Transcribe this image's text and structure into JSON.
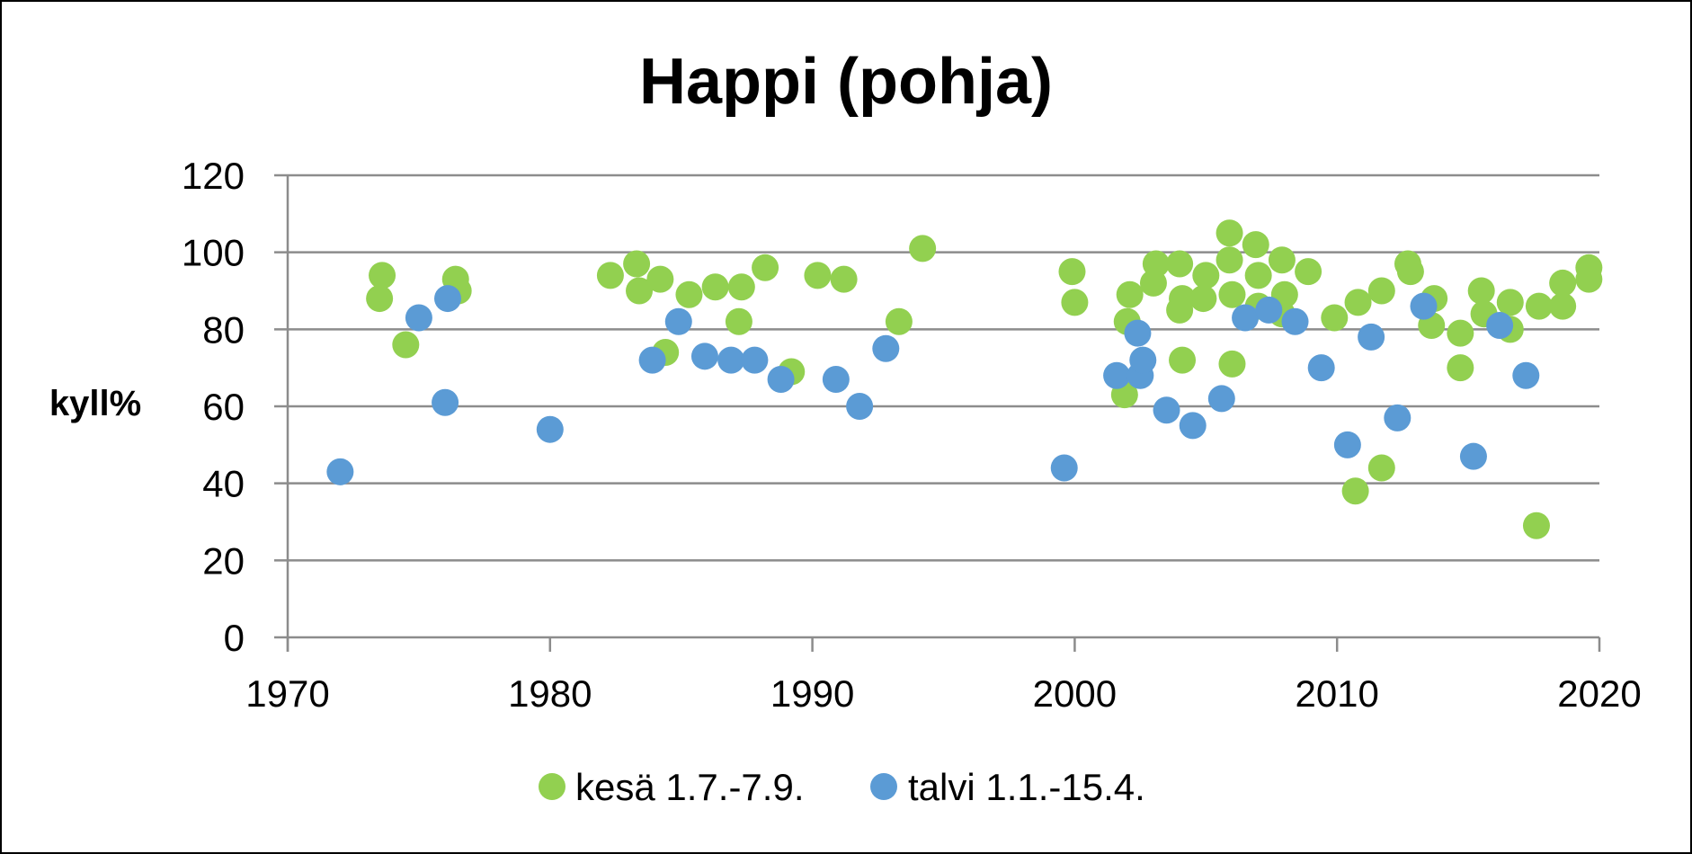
{
  "chart_data": {
    "type": "scatter",
    "title": "Happi (pohja)",
    "ylabel": "kyll%",
    "xlim": [
      1970,
      2020
    ],
    "ylim": [
      0,
      120
    ],
    "x_ticks": [
      1970,
      1980,
      1990,
      2000,
      2010,
      2020
    ],
    "y_ticks": [
      0,
      20,
      40,
      60,
      80,
      100,
      120
    ],
    "grid": "horizontal",
    "legend_position": "bottom",
    "series": [
      {
        "name": "kesä 1.7.-7.9.",
        "color": "#92D050",
        "points": [
          [
            1973.5,
            88
          ],
          [
            1973.6,
            94
          ],
          [
            1974.5,
            76
          ],
          [
            1976.5,
            90
          ],
          [
            1976.4,
            93
          ],
          [
            1982.3,
            94
          ],
          [
            1983.3,
            97
          ],
          [
            1983.4,
            90
          ],
          [
            1984.2,
            93
          ],
          [
            1984.4,
            74
          ],
          [
            1985.3,
            89
          ],
          [
            1986.3,
            91
          ],
          [
            1987.2,
            82
          ],
          [
            1987.3,
            91
          ],
          [
            1988.2,
            96
          ],
          [
            1989.2,
            69
          ],
          [
            1990.2,
            94
          ],
          [
            1991.2,
            93
          ],
          [
            1993.3,
            82
          ],
          [
            1994.2,
            101
          ],
          [
            1999.9,
            95
          ],
          [
            2000.0,
            87
          ],
          [
            2001.9,
            63
          ],
          [
            2002.0,
            82
          ],
          [
            2002.1,
            89
          ],
          [
            2003.0,
            92
          ],
          [
            2003.1,
            97
          ],
          [
            2004.0,
            97
          ],
          [
            2004.0,
            85
          ],
          [
            2004.1,
            88
          ],
          [
            2004.1,
            72
          ],
          [
            2004.9,
            88
          ],
          [
            2005.0,
            94
          ],
          [
            2005.9,
            105
          ],
          [
            2005.9,
            98
          ],
          [
            2006.0,
            71
          ],
          [
            2006.0,
            89
          ],
          [
            2006.9,
            102
          ],
          [
            2007.0,
            94
          ],
          [
            2007.0,
            86
          ],
          [
            2007.9,
            98
          ],
          [
            2007.9,
            84
          ],
          [
            2008.0,
            89
          ],
          [
            2008.9,
            95
          ],
          [
            2009.9,
            83
          ],
          [
            2010.7,
            38
          ],
          [
            2010.8,
            87
          ],
          [
            2011.7,
            44
          ],
          [
            2011.7,
            90
          ],
          [
            2012.7,
            97
          ],
          [
            2012.8,
            95
          ],
          [
            2013.6,
            81
          ],
          [
            2013.7,
            88
          ],
          [
            2014.7,
            70
          ],
          [
            2014.7,
            79
          ],
          [
            2015.5,
            90
          ],
          [
            2015.6,
            84
          ],
          [
            2016.6,
            80
          ],
          [
            2016.6,
            87
          ],
          [
            2017.6,
            29
          ],
          [
            2017.7,
            86
          ],
          [
            2018.6,
            92
          ],
          [
            2018.6,
            86
          ],
          [
            2019.6,
            96
          ],
          [
            2019.6,
            93
          ]
        ]
      },
      {
        "name": "talvi 1.1.-15.4.",
        "color": "#5B9BD5",
        "points": [
          [
            1972.0,
            43
          ],
          [
            1975.0,
            83
          ],
          [
            1976.0,
            61
          ],
          [
            1976.1,
            88
          ],
          [
            1980.0,
            54
          ],
          [
            1983.9,
            72
          ],
          [
            1984.9,
            82
          ],
          [
            1985.9,
            73
          ],
          [
            1986.9,
            72
          ],
          [
            1987.8,
            72
          ],
          [
            1988.8,
            67
          ],
          [
            1990.9,
            67
          ],
          [
            1991.8,
            60
          ],
          [
            1992.8,
            75
          ],
          [
            1999.6,
            44
          ],
          [
            2001.6,
            68
          ],
          [
            2002.4,
            79
          ],
          [
            2002.5,
            68
          ],
          [
            2002.6,
            72
          ],
          [
            2003.5,
            59
          ],
          [
            2004.5,
            55
          ],
          [
            2005.6,
            62
          ],
          [
            2006.5,
            83
          ],
          [
            2007.4,
            85
          ],
          [
            2008.4,
            82
          ],
          [
            2009.4,
            70
          ],
          [
            2010.4,
            50
          ],
          [
            2011.3,
            78
          ],
          [
            2012.3,
            57
          ],
          [
            2013.3,
            86
          ],
          [
            2015.2,
            47
          ],
          [
            2016.2,
            81
          ],
          [
            2017.2,
            68
          ]
        ]
      }
    ]
  }
}
